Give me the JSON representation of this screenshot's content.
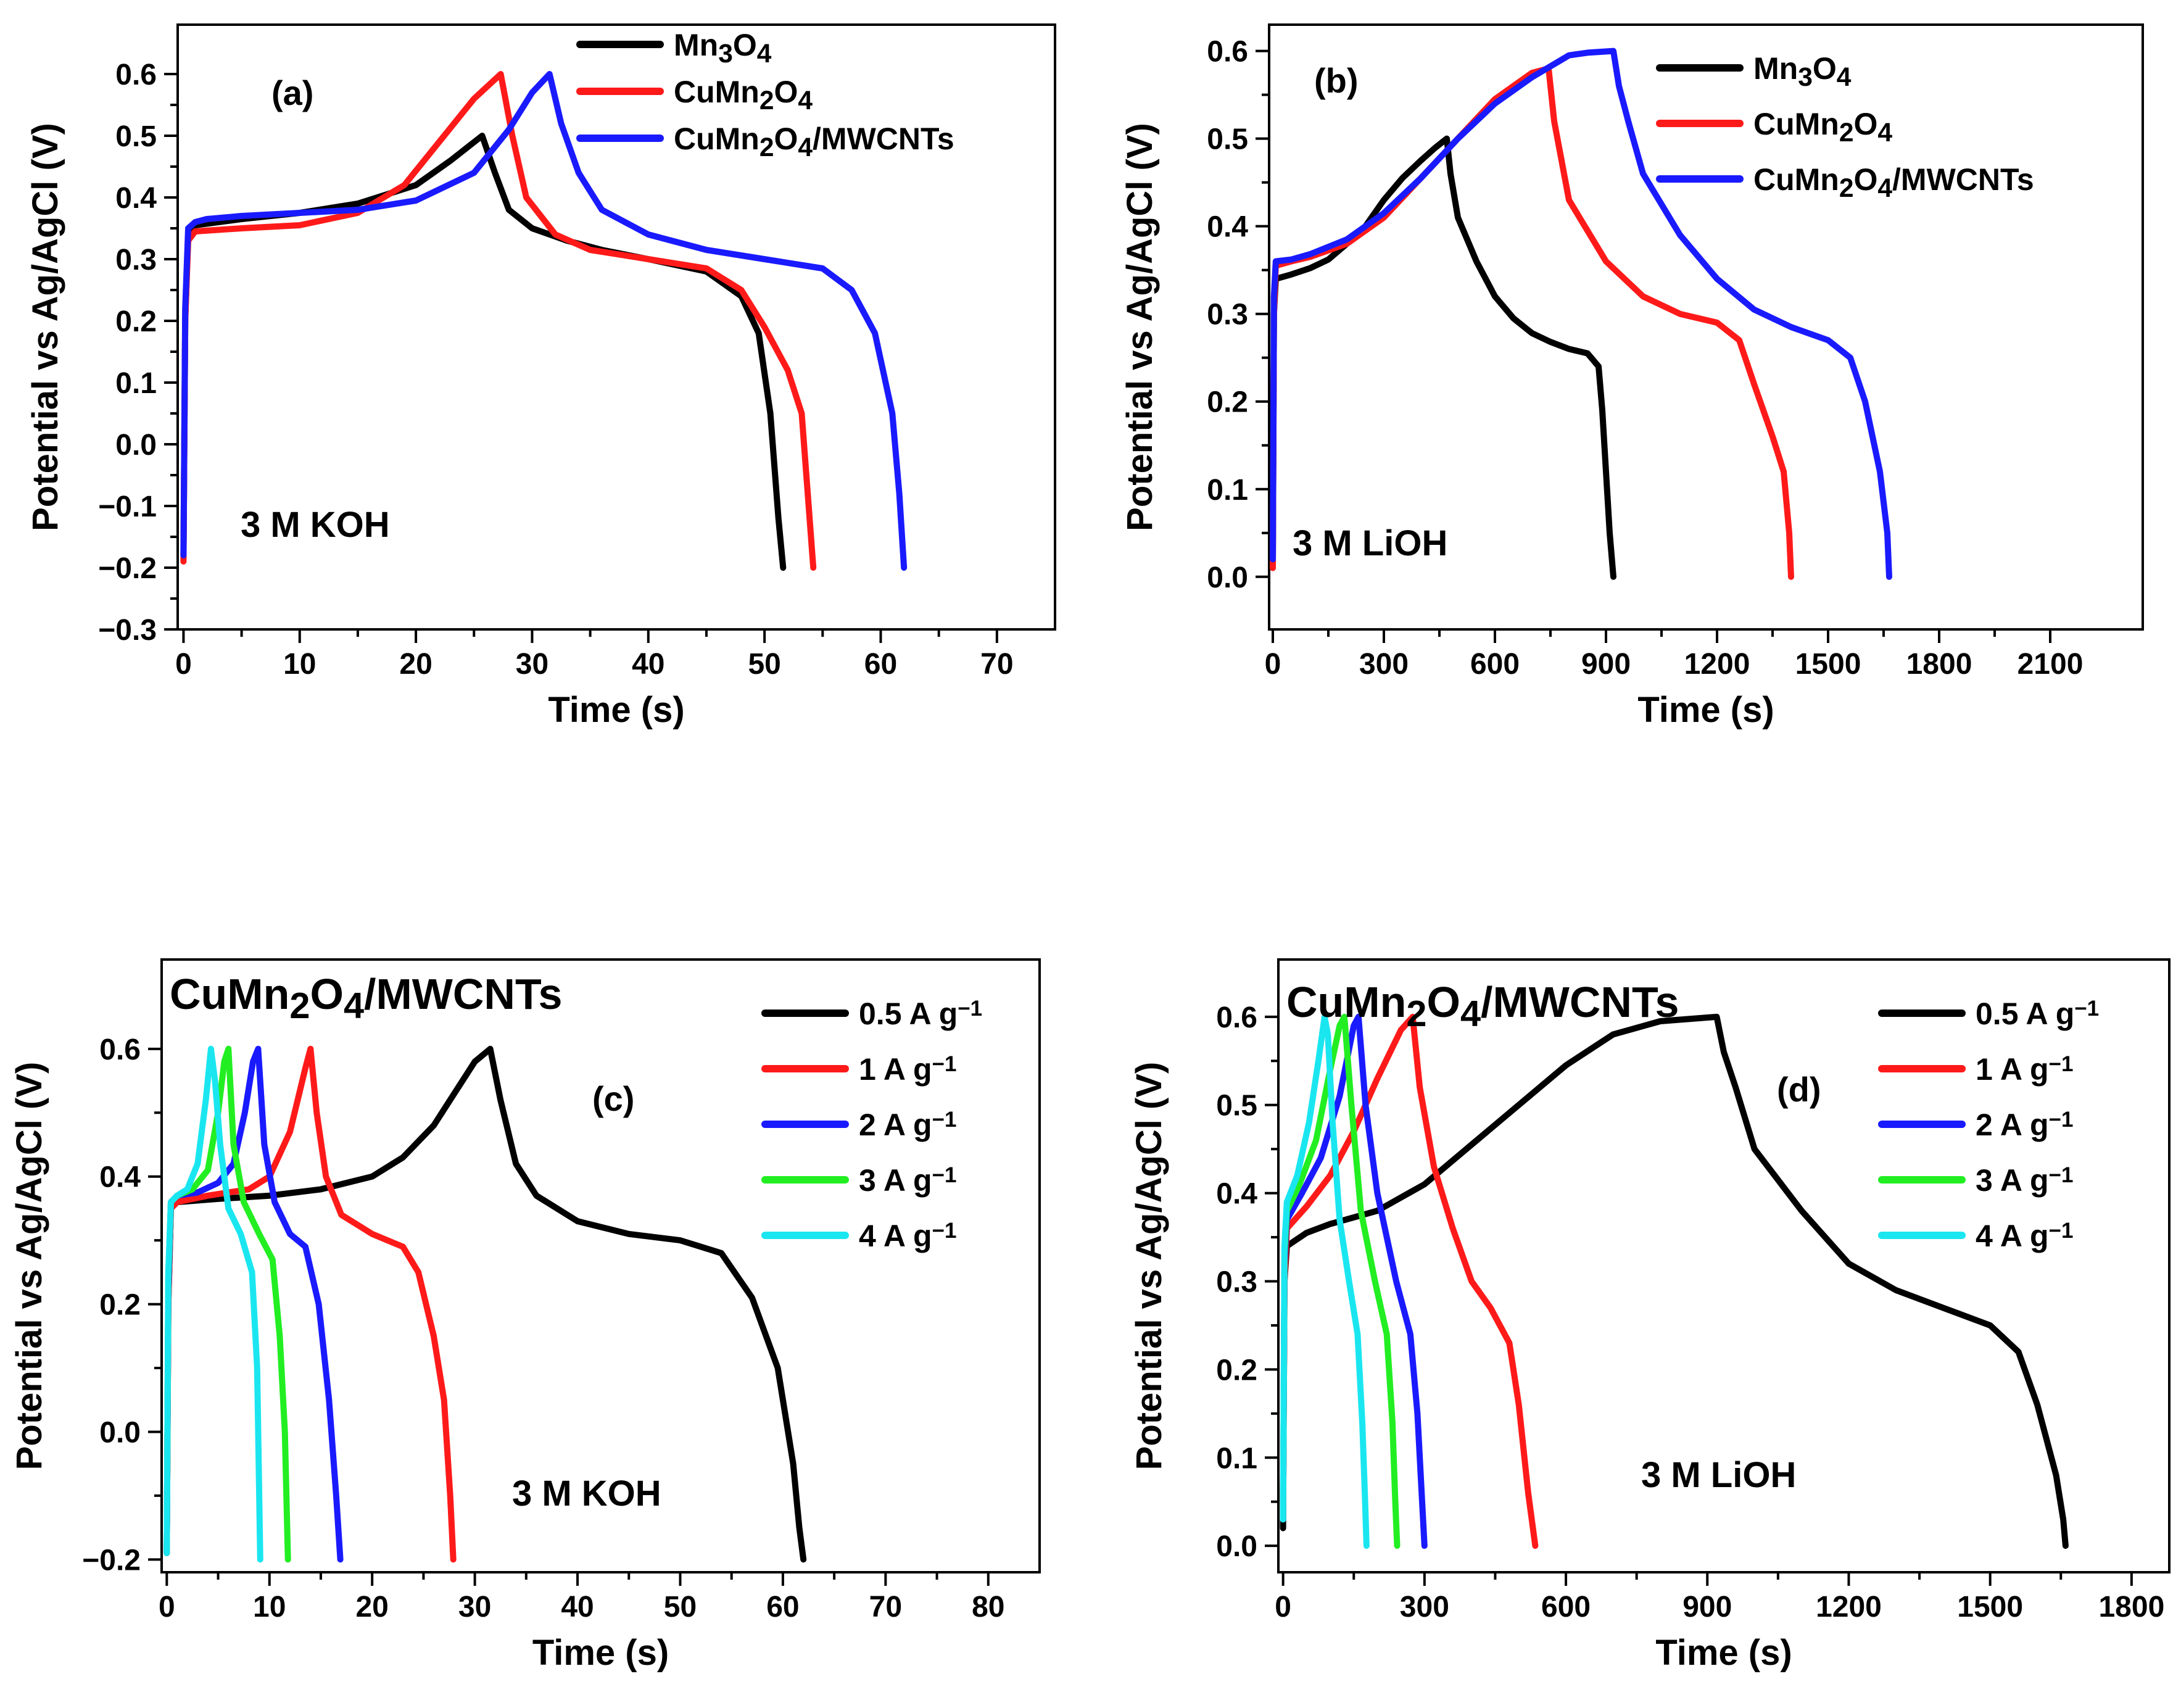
{
  "colors": {
    "black": "#000000",
    "red": "#ff1a1a",
    "blue": "#1a1aff",
    "green": "#22ee22",
    "cyan": "#1ae6f0"
  },
  "chart_data": [
    {
      "id": "a",
      "type": "line",
      "panel_label": "(a)",
      "title": "",
      "xlabel": "Time (s)",
      "ylabel": "Potential vs Ag/AgCl (V)",
      "xlim": [
        -0.5,
        75
      ],
      "ylim": [
        -0.3,
        0.68
      ],
      "xticks": [
        0,
        10,
        20,
        30,
        40,
        50,
        60,
        70
      ],
      "yticks": [
        -0.3,
        -0.2,
        -0.1,
        0.0,
        0.1,
        0.2,
        0.3,
        0.4,
        0.5,
        0.6
      ],
      "ytick_labels": [
        "−0.3",
        "−0.2",
        "−0.1",
        "0.0",
        "0.1",
        "0.2",
        "0.3",
        "0.4",
        "0.5",
        "0.6"
      ],
      "annotation": "3 M KOH",
      "series": [
        {
          "name": "Mn3O4",
          "label": "Mn₃O₄",
          "color": "#000000",
          "x": [
            0,
            0.15,
            0.4,
            1,
            5,
            10,
            15,
            20,
            23,
            25.7,
            26.8,
            28,
            30,
            33,
            36,
            40,
            45,
            48,
            49.5,
            50.5,
            51.2,
            51.6
          ],
          "y": [
            -0.18,
            0.2,
            0.34,
            0.355,
            0.365,
            0.375,
            0.39,
            0.42,
            0.46,
            0.5,
            0.44,
            0.38,
            0.35,
            0.33,
            0.315,
            0.3,
            0.28,
            0.24,
            0.18,
            0.05,
            -0.12,
            -0.2
          ]
        },
        {
          "name": "CuMn2O4",
          "label": "CuMn₂O₄",
          "color": "#ff1a1a",
          "x": [
            0,
            0.15,
            0.4,
            1,
            5,
            10,
            15,
            19,
            22,
            25,
            27.3,
            28.3,
            29.5,
            32,
            35,
            40,
            45,
            48,
            50,
            52,
            53.2,
            53.8,
            54.2
          ],
          "y": [
            -0.19,
            0.2,
            0.33,
            0.345,
            0.35,
            0.355,
            0.375,
            0.42,
            0.49,
            0.56,
            0.6,
            0.5,
            0.4,
            0.34,
            0.315,
            0.3,
            0.285,
            0.25,
            0.19,
            0.12,
            0.05,
            -0.1,
            -0.2
          ]
        },
        {
          "name": "CuMn2O4/MWCNTs",
          "label": "CuMn₂O₄/MWCNTs",
          "color": "#1a1aff",
          "x": [
            0,
            0.15,
            0.4,
            1,
            2,
            5,
            10,
            15,
            20,
            25,
            28,
            30,
            31.5,
            32.5,
            34,
            36,
            40,
            45,
            50,
            55,
            57.5,
            59.5,
            61,
            61.6,
            62
          ],
          "y": [
            -0.18,
            0.22,
            0.35,
            0.36,
            0.365,
            0.37,
            0.375,
            0.38,
            0.395,
            0.44,
            0.51,
            0.57,
            0.6,
            0.52,
            0.44,
            0.38,
            0.34,
            0.315,
            0.3,
            0.285,
            0.25,
            0.18,
            0.05,
            -0.08,
            -0.2
          ]
        }
      ]
    },
    {
      "id": "b",
      "type": "line",
      "panel_label": "(b)",
      "title": "",
      "xlabel": "Time (s)",
      "ylabel": "Potential vs Ag/AgCl (V)",
      "xlim": [
        -10,
        2350
      ],
      "ylim": [
        -0.06,
        0.63
      ],
      "xticks": [
        0,
        300,
        600,
        900,
        1200,
        1500,
        1800,
        2100
      ],
      "yticks": [
        0.0,
        0.1,
        0.2,
        0.3,
        0.4,
        0.5,
        0.6
      ],
      "ytick_labels": [
        "0.0",
        "0.1",
        "0.2",
        "0.3",
        "0.4",
        "0.5",
        "0.6"
      ],
      "annotation": "3 M LiOH",
      "series": [
        {
          "name": "Mn3O4",
          "label": "Mn₃O₄",
          "color": "#000000",
          "x": [
            0,
            3,
            8,
            50,
            100,
            150,
            200,
            250,
            300,
            350,
            400,
            440,
            470,
            480,
            500,
            550,
            600,
            650,
            700,
            750,
            800,
            850,
            880,
            890,
            900,
            910,
            920
          ],
          "y": [
            0.02,
            0.3,
            0.34,
            0.345,
            0.352,
            0.362,
            0.38,
            0.4,
            0.43,
            0.455,
            0.475,
            0.49,
            0.5,
            0.46,
            0.41,
            0.36,
            0.32,
            0.295,
            0.278,
            0.268,
            0.26,
            0.255,
            0.24,
            0.19,
            0.12,
            0.05,
            0.0
          ]
        },
        {
          "name": "CuMn2O4",
          "label": "CuMn₂O₄",
          "color": "#ff1a1a",
          "x": [
            0,
            3,
            8,
            50,
            100,
            200,
            300,
            400,
            500,
            600,
            700,
            745,
            760,
            800,
            900,
            1000,
            1100,
            1200,
            1260,
            1300,
            1350,
            1380,
            1395,
            1400
          ],
          "y": [
            0.01,
            0.3,
            0.355,
            0.36,
            0.365,
            0.38,
            0.41,
            0.455,
            0.5,
            0.545,
            0.575,
            0.58,
            0.52,
            0.43,
            0.36,
            0.32,
            0.3,
            0.29,
            0.27,
            0.22,
            0.16,
            0.12,
            0.05,
            0.0
          ]
        },
        {
          "name": "CuMn2O4/MWCNTs",
          "label": "CuMn₂O₄/MWCNTs",
          "color": "#1a1aff",
          "x": [
            0,
            3,
            8,
            50,
            100,
            200,
            300,
            400,
            500,
            600,
            700,
            760,
            800,
            850,
            920,
            935,
            960,
            1000,
            1100,
            1200,
            1300,
            1400,
            1500,
            1560,
            1600,
            1640,
            1660,
            1665
          ],
          "y": [
            0.02,
            0.32,
            0.36,
            0.362,
            0.368,
            0.385,
            0.415,
            0.455,
            0.5,
            0.54,
            0.57,
            0.585,
            0.595,
            0.598,
            0.6,
            0.56,
            0.52,
            0.46,
            0.39,
            0.34,
            0.305,
            0.285,
            0.27,
            0.25,
            0.2,
            0.12,
            0.05,
            0.0
          ]
        }
      ]
    },
    {
      "id": "c",
      "type": "line",
      "panel_label": "(c)",
      "heading": "CuMn₂O₄/MWCNTs",
      "title": "",
      "xlabel": "Time (s)",
      "ylabel": "Potential vs Ag/AgCl (V)",
      "xlim": [
        -0.5,
        85
      ],
      "ylim": [
        -0.22,
        0.74
      ],
      "xticks": [
        0,
        10,
        20,
        30,
        40,
        50,
        60,
        70,
        80
      ],
      "yticks": [
        -0.2,
        0.0,
        0.2,
        0.4,
        0.6
      ],
      "ytick_labels": [
        "−0.2",
        "0.0",
        "0.2",
        "0.4",
        "0.6"
      ],
      "annotation": "3 M KOH",
      "series": [
        {
          "name": "0.5 A g-1",
          "label": "0.5 A g⁻¹",
          "color": "#000000",
          "x": [
            0,
            0.15,
            0.4,
            1,
            5,
            10,
            15,
            20,
            23,
            26,
            28,
            30,
            31.5,
            32.5,
            34,
            36,
            40,
            45,
            50,
            54,
            57,
            59.5,
            61,
            61.6,
            62
          ],
          "y": [
            -0.19,
            0.2,
            0.35,
            0.36,
            0.365,
            0.37,
            0.38,
            0.4,
            0.43,
            0.48,
            0.53,
            0.58,
            0.6,
            0.52,
            0.42,
            0.37,
            0.33,
            0.31,
            0.3,
            0.28,
            0.21,
            0.1,
            -0.05,
            -0.15,
            -0.2
          ]
        },
        {
          "name": "1 A g-1",
          "label": "1 A g⁻¹",
          "color": "#ff1a1a",
          "x": [
            0,
            0.15,
            0.4,
            1,
            4,
            8,
            10,
            12,
            13.5,
            14,
            14.6,
            15.5,
            17,
            20,
            23,
            24.5,
            26,
            27,
            27.6,
            27.9
          ],
          "y": [
            -0.19,
            0.2,
            0.35,
            0.36,
            0.37,
            0.38,
            0.4,
            0.47,
            0.57,
            0.6,
            0.5,
            0.4,
            0.34,
            0.31,
            0.29,
            0.25,
            0.15,
            0.05,
            -0.1,
            -0.2
          ]
        },
        {
          "name": "2 A g-1",
          "label": "2 A g⁻¹",
          "color": "#1a1aff",
          "x": [
            0,
            0.15,
            0.4,
            1,
            3,
            5,
            6.5,
            7.6,
            8.4,
            8.9,
            9.5,
            10.5,
            12,
            13.5,
            14.8,
            15.8,
            16.5,
            16.9
          ],
          "y": [
            -0.19,
            0.22,
            0.36,
            0.37,
            0.375,
            0.39,
            0.42,
            0.5,
            0.58,
            0.6,
            0.45,
            0.36,
            0.31,
            0.29,
            0.2,
            0.05,
            -0.1,
            -0.2
          ]
        },
        {
          "name": "3 A g-1",
          "label": "3 A g⁻¹",
          "color": "#22ee22",
          "x": [
            0,
            0.15,
            0.4,
            1,
            2.5,
            4,
            5,
            5.6,
            6,
            6.5,
            7.5,
            9,
            10.3,
            11,
            11.5,
            11.8
          ],
          "y": [
            -0.19,
            0.24,
            0.36,
            0.37,
            0.38,
            0.41,
            0.5,
            0.58,
            0.6,
            0.45,
            0.36,
            0.31,
            0.27,
            0.15,
            0.0,
            -0.2
          ]
        },
        {
          "name": "4 A g-1",
          "label": "4 A g⁻¹",
          "color": "#1ae6f0",
          "x": [
            0,
            0.15,
            0.4,
            1,
            2,
            3,
            3.8,
            4.3,
            4.7,
            5.2,
            6,
            7.2,
            8.3,
            8.8,
            9.1
          ],
          "y": [
            -0.19,
            0.25,
            0.36,
            0.37,
            0.38,
            0.42,
            0.52,
            0.6,
            0.55,
            0.45,
            0.35,
            0.31,
            0.25,
            0.1,
            -0.2
          ]
        }
      ]
    },
    {
      "id": "d",
      "type": "line",
      "panel_label": "(d)",
      "heading": "CuMn₂O₄/MWCNTs",
      "title": "",
      "xlabel": "Time (s)",
      "ylabel": "Potential vs Ag/AgCl (V)",
      "xlim": [
        -10,
        1880
      ],
      "ylim": [
        -0.03,
        0.665
      ],
      "xticks": [
        0,
        300,
        600,
        900,
        1200,
        1500,
        1800
      ],
      "yticks": [
        0.0,
        0.1,
        0.2,
        0.3,
        0.4,
        0.5,
        0.6
      ],
      "ytick_labels": [
        "0.0",
        "0.1",
        "0.2",
        "0.3",
        "0.4",
        "0.5",
        "0.6"
      ],
      "annotation": "3 M LiOH",
      "series": [
        {
          "name": "0.5 A g-1",
          "label": "0.5 A g⁻¹",
          "color": "#000000",
          "x": [
            0,
            3,
            8,
            50,
            100,
            200,
            300,
            400,
            500,
            600,
            700,
            800,
            920,
            935,
            960,
            1000,
            1100,
            1200,
            1300,
            1400,
            1500,
            1560,
            1600,
            1640,
            1655,
            1660
          ],
          "y": [
            0.02,
            0.3,
            0.34,
            0.355,
            0.365,
            0.38,
            0.41,
            0.455,
            0.5,
            0.545,
            0.58,
            0.595,
            0.6,
            0.56,
            0.52,
            0.45,
            0.38,
            0.32,
            0.29,
            0.27,
            0.25,
            0.22,
            0.16,
            0.08,
            0.03,
            0.0
          ]
        },
        {
          "name": "1 A g-1",
          "label": "1 A g⁻¹",
          "color": "#ff1a1a",
          "x": [
            0,
            3,
            8,
            50,
            100,
            150,
            200,
            250,
            275,
            290,
            320,
            360,
            400,
            440,
            480,
            500,
            520,
            535
          ],
          "y": [
            0.03,
            0.3,
            0.36,
            0.385,
            0.42,
            0.47,
            0.53,
            0.585,
            0.6,
            0.52,
            0.43,
            0.36,
            0.3,
            0.27,
            0.23,
            0.16,
            0.06,
            0.0
          ]
        },
        {
          "name": "2 A g-1",
          "label": "2 A g⁻¹",
          "color": "#1a1aff",
          "x": [
            0,
            3,
            8,
            40,
            80,
            120,
            150,
            160,
            175,
            200,
            240,
            270,
            285,
            295,
            300
          ],
          "y": [
            0.03,
            0.32,
            0.37,
            0.4,
            0.44,
            0.51,
            0.59,
            0.6,
            0.5,
            0.4,
            0.3,
            0.24,
            0.15,
            0.05,
            0.0
          ]
        },
        {
          "name": "3 A g-1",
          "label": "3 A g⁻¹",
          "color": "#22ee22",
          "x": [
            0,
            3,
            8,
            35,
            70,
            100,
            120,
            130,
            145,
            165,
            195,
            220,
            232,
            238,
            242
          ],
          "y": [
            0.03,
            0.33,
            0.38,
            0.41,
            0.46,
            0.54,
            0.59,
            0.6,
            0.5,
            0.38,
            0.3,
            0.24,
            0.14,
            0.05,
            0.0
          ]
        },
        {
          "name": "4 A g-1",
          "label": "4 A g⁻¹",
          "color": "#1ae6f0",
          "x": [
            0,
            3,
            8,
            30,
            55,
            75,
            88,
            95,
            105,
            120,
            140,
            158,
            168,
            174,
            177
          ],
          "y": [
            0.03,
            0.34,
            0.39,
            0.42,
            0.48,
            0.55,
            0.6,
            0.58,
            0.48,
            0.37,
            0.3,
            0.24,
            0.14,
            0.05,
            0.0
          ]
        }
      ]
    }
  ]
}
